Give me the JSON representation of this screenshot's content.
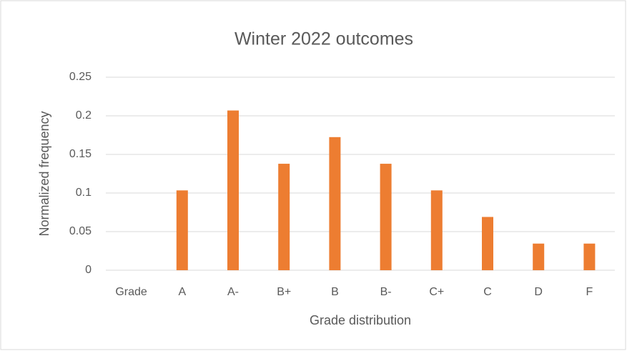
{
  "chart_data": {
    "type": "bar",
    "title": "Winter 2022 outcomes",
    "x_label": "Grade distribution",
    "y_label": "Normalized frequency",
    "categories": [
      "Grade",
      "A",
      "A-",
      "B+",
      "B",
      "B-",
      "C+",
      "C",
      "D",
      "F"
    ],
    "values": [
      null,
      0.1034,
      0.2069,
      0.1379,
      0.1724,
      0.1379,
      0.1034,
      0.069,
      0.0345,
      0.0345
    ],
    "color": "#ed7d31",
    "ylim": [
      0,
      0.25
    ],
    "yticks": [
      0,
      0.05,
      0.1,
      0.15,
      0.2,
      0.25
    ],
    "grid": true
  }
}
